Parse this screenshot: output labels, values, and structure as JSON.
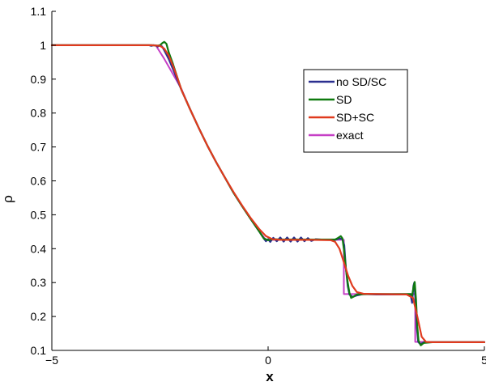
{
  "chart_data": {
    "type": "line",
    "xlabel": "x",
    "ylabel": "ρ",
    "xlim": [
      -5,
      5
    ],
    "ylim": [
      0.1,
      1.1
    ],
    "xticks": [
      -5,
      0,
      5
    ],
    "xtick_labels": [
      "−5",
      "0",
      "5"
    ],
    "yticks": [
      0.1,
      0.2,
      0.3,
      0.4,
      0.5,
      0.6,
      0.7,
      0.8,
      0.9,
      1.0,
      1.1
    ],
    "ytick_labels": [
      "0.1",
      "0.2",
      "0.3",
      "0.4",
      "0.5",
      "0.6",
      "0.7",
      "0.8",
      "0.9",
      "1",
      "1.1"
    ],
    "grid": false,
    "legend_position": "upper-right",
    "series": [
      {
        "name": "no SD/SC",
        "color": "#2b2f8f",
        "points": [
          [
            -5,
            1.0
          ],
          [
            -3.0,
            1.0
          ],
          [
            -2.75,
            1.0
          ],
          [
            -2.7,
            0.998
          ],
          [
            -2.65,
            1.0
          ],
          [
            -2.6,
            0.999
          ],
          [
            -2.55,
            0.996
          ],
          [
            -2.5,
            1.0
          ],
          [
            -2.45,
            0.996
          ],
          [
            -2.4,
            0.985
          ],
          [
            -2.3,
            0.96
          ],
          [
            -2.2,
            0.93
          ],
          [
            -2.0,
            0.867
          ],
          [
            -1.8,
            0.81
          ],
          [
            -1.6,
            0.755
          ],
          [
            -1.4,
            0.703
          ],
          [
            -1.2,
            0.655
          ],
          [
            -1.0,
            0.61
          ],
          [
            -0.8,
            0.565
          ],
          [
            -0.6,
            0.525
          ],
          [
            -0.4,
            0.487
          ],
          [
            -0.2,
            0.45
          ],
          [
            -0.1,
            0.43
          ],
          [
            -0.05,
            0.422
          ],
          [
            0.0,
            0.428
          ],
          [
            0.05,
            0.42
          ],
          [
            0.12,
            0.432
          ],
          [
            0.2,
            0.422
          ],
          [
            0.28,
            0.433
          ],
          [
            0.36,
            0.421
          ],
          [
            0.44,
            0.433
          ],
          [
            0.52,
            0.421
          ],
          [
            0.6,
            0.433
          ],
          [
            0.68,
            0.421
          ],
          [
            0.76,
            0.433
          ],
          [
            0.84,
            0.422
          ],
          [
            0.92,
            0.431
          ],
          [
            1.0,
            0.423
          ],
          [
            1.1,
            0.428
          ],
          [
            1.3,
            0.426
          ],
          [
            1.55,
            0.426
          ],
          [
            1.65,
            0.43
          ],
          [
            1.72,
            0.428
          ],
          [
            1.76,
            0.41
          ],
          [
            1.8,
            0.34
          ],
          [
            1.84,
            0.29
          ],
          [
            1.88,
            0.265
          ],
          [
            1.95,
            0.258
          ],
          [
            2.05,
            0.262
          ],
          [
            2.2,
            0.266
          ],
          [
            2.5,
            0.265
          ],
          [
            3.0,
            0.265
          ],
          [
            3.25,
            0.265
          ],
          [
            3.3,
            0.26
          ],
          [
            3.33,
            0.24
          ],
          [
            3.36,
            0.29
          ],
          [
            3.38,
            0.3
          ],
          [
            3.41,
            0.24
          ],
          [
            3.44,
            0.165
          ],
          [
            3.47,
            0.125
          ],
          [
            3.52,
            0.118
          ],
          [
            3.6,
            0.124
          ],
          [
            3.8,
            0.124
          ],
          [
            5.0,
            0.124
          ]
        ]
      },
      {
        "name": "SD",
        "color": "#0f7a0f",
        "points": [
          [
            -5,
            1.0
          ],
          [
            -3.0,
            1.0
          ],
          [
            -2.7,
            1.0
          ],
          [
            -2.55,
            0.999
          ],
          [
            -2.5,
            1.0
          ],
          [
            -2.45,
            1.006
          ],
          [
            -2.4,
            1.01
          ],
          [
            -2.35,
            1.004
          ],
          [
            -2.3,
            0.98
          ],
          [
            -2.2,
            0.945
          ],
          [
            -2.1,
            0.905
          ],
          [
            -2.0,
            0.867
          ],
          [
            -1.8,
            0.81
          ],
          [
            -1.6,
            0.755
          ],
          [
            -1.4,
            0.703
          ],
          [
            -1.2,
            0.655
          ],
          [
            -1.0,
            0.61
          ],
          [
            -0.8,
            0.565
          ],
          [
            -0.6,
            0.525
          ],
          [
            -0.4,
            0.487
          ],
          [
            -0.2,
            0.45
          ],
          [
            -0.1,
            0.43
          ],
          [
            0.0,
            0.425
          ],
          [
            0.1,
            0.428
          ],
          [
            0.3,
            0.427
          ],
          [
            1.0,
            0.427
          ],
          [
            1.55,
            0.427
          ],
          [
            1.62,
            0.432
          ],
          [
            1.68,
            0.437
          ],
          [
            1.72,
            0.43
          ],
          [
            1.76,
            0.39
          ],
          [
            1.8,
            0.34
          ],
          [
            1.84,
            0.3
          ],
          [
            1.88,
            0.27
          ],
          [
            1.92,
            0.255
          ],
          [
            1.97,
            0.258
          ],
          [
            2.05,
            0.265
          ],
          [
            2.3,
            0.266
          ],
          [
            3.0,
            0.266
          ],
          [
            3.3,
            0.266
          ],
          [
            3.33,
            0.262
          ],
          [
            3.36,
            0.285
          ],
          [
            3.39,
            0.302
          ],
          [
            3.42,
            0.25
          ],
          [
            3.45,
            0.17
          ],
          [
            3.48,
            0.128
          ],
          [
            3.53,
            0.115
          ],
          [
            3.6,
            0.122
          ],
          [
            3.8,
            0.124
          ],
          [
            5.0,
            0.124
          ]
        ]
      },
      {
        "name": "SD+SC",
        "color": "#e03a1e",
        "points": [
          [
            -5,
            1.0
          ],
          [
            -2.7,
            1.0
          ],
          [
            -2.5,
            0.998
          ],
          [
            -2.4,
            0.99
          ],
          [
            -2.3,
            0.97
          ],
          [
            -2.2,
            0.94
          ],
          [
            -2.1,
            0.905
          ],
          [
            -2.0,
            0.867
          ],
          [
            -1.8,
            0.81
          ],
          [
            -1.6,
            0.755
          ],
          [
            -1.4,
            0.703
          ],
          [
            -1.2,
            0.655
          ],
          [
            -1.0,
            0.61
          ],
          [
            -0.8,
            0.567
          ],
          [
            -0.6,
            0.527
          ],
          [
            -0.4,
            0.49
          ],
          [
            -0.2,
            0.457
          ],
          [
            -0.05,
            0.437
          ],
          [
            0.1,
            0.428
          ],
          [
            0.3,
            0.426
          ],
          [
            1.0,
            0.426
          ],
          [
            1.45,
            0.425
          ],
          [
            1.55,
            0.42
          ],
          [
            1.65,
            0.4
          ],
          [
            1.75,
            0.36
          ],
          [
            1.85,
            0.32
          ],
          [
            1.95,
            0.29
          ],
          [
            2.05,
            0.272
          ],
          [
            2.2,
            0.267
          ],
          [
            2.5,
            0.266
          ],
          [
            3.2,
            0.265
          ],
          [
            3.35,
            0.255
          ],
          [
            3.45,
            0.2
          ],
          [
            3.55,
            0.14
          ],
          [
            3.65,
            0.125
          ],
          [
            3.8,
            0.124
          ],
          [
            5.0,
            0.124
          ]
        ]
      },
      {
        "name": "exact",
        "color": "#c63fc6",
        "points": [
          [
            -5,
            1.0
          ],
          [
            -2.6,
            1.0
          ],
          [
            -2.4,
            0.96
          ],
          [
            -2.2,
            0.915
          ],
          [
            -2.0,
            0.87
          ],
          [
            -1.8,
            0.81
          ],
          [
            -1.6,
            0.755
          ],
          [
            -1.4,
            0.703
          ],
          [
            -1.2,
            0.655
          ],
          [
            -1.0,
            0.61
          ],
          [
            -0.8,
            0.565
          ],
          [
            -0.6,
            0.525
          ],
          [
            -0.4,
            0.487
          ],
          [
            -0.2,
            0.45
          ],
          [
            -0.05,
            0.426
          ],
          [
            1.75,
            0.426
          ],
          [
            1.75,
            0.266
          ],
          [
            3.4,
            0.266
          ],
          [
            3.4,
            0.125
          ],
          [
            5.0,
            0.125
          ]
        ]
      }
    ]
  }
}
